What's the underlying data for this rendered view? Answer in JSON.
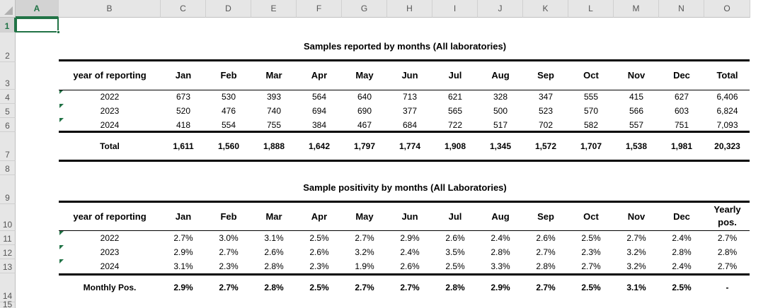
{
  "sheet": {
    "columns": [
      "A",
      "B",
      "C",
      "D",
      "E",
      "F",
      "G",
      "H",
      "I",
      "J",
      "K",
      "L",
      "M",
      "N",
      "O"
    ],
    "rows": [
      "1",
      "2",
      "3",
      "4",
      "5",
      "6",
      "7",
      "8",
      "9",
      "10",
      "11",
      "12",
      "13",
      "14",
      "15"
    ]
  },
  "table1": {
    "title": "Samples reported by months (All laboratories)",
    "headers": [
      "year of reporting",
      "Jan",
      "Feb",
      "Mar",
      "Apr",
      "May",
      "Jun",
      "Jul",
      "Aug",
      "Sep",
      "Oct",
      "Nov",
      "Dec",
      "Total"
    ],
    "rows": [
      [
        "2022",
        "673",
        "530",
        "393",
        "564",
        "640",
        "713",
        "621",
        "328",
        "347",
        "555",
        "415",
        "627",
        "6,406"
      ],
      [
        "2023",
        "520",
        "476",
        "740",
        "694",
        "690",
        "377",
        "565",
        "500",
        "523",
        "570",
        "566",
        "603",
        "6,824"
      ],
      [
        "2024",
        "418",
        "554",
        "755",
        "384",
        "467",
        "684",
        "722",
        "517",
        "702",
        "582",
        "557",
        "751",
        "7,093"
      ]
    ],
    "total": [
      "Total",
      "1,611",
      "1,560",
      "1,888",
      "1,642",
      "1,797",
      "1,774",
      "1,908",
      "1,345",
      "1,572",
      "1,707",
      "1,538",
      "1,981",
      "20,323"
    ]
  },
  "table2": {
    "title": "Sample positivity by months (All Laboratories)",
    "headers": [
      "year of reporting",
      "Jan",
      "Feb",
      "Mar",
      "Apr",
      "May",
      "Jun",
      "Jul",
      "Aug",
      "Sep",
      "Oct",
      "Nov",
      "Dec"
    ],
    "last_header_line1": "Yearly",
    "last_header_line2": "pos.",
    "rows": [
      [
        "2022",
        "2.7%",
        "3.0%",
        "3.1%",
        "2.5%",
        "2.7%",
        "2.9%",
        "2.6%",
        "2.4%",
        "2.6%",
        "2.5%",
        "2.7%",
        "2.4%",
        "2.7%"
      ],
      [
        "2023",
        "2.9%",
        "2.7%",
        "2.6%",
        "2.6%",
        "3.2%",
        "2.4%",
        "3.5%",
        "2.8%",
        "2.7%",
        "2.3%",
        "3.2%",
        "2.8%",
        "2.8%"
      ],
      [
        "2024",
        "3.1%",
        "2.3%",
        "2.8%",
        "2.3%",
        "1.9%",
        "2.6%",
        "2.5%",
        "3.3%",
        "2.8%",
        "2.7%",
        "3.2%",
        "2.4%",
        "2.7%"
      ]
    ],
    "total": [
      "Monthly Pos.",
      "2.9%",
      "2.7%",
      "2.8%",
      "2.5%",
      "2.7%",
      "2.7%",
      "2.8%",
      "2.9%",
      "2.7%",
      "2.5%",
      "3.1%",
      "2.5%",
      "-"
    ]
  },
  "colors": {
    "selection": "#217346",
    "header_bg": "#e6e6e6"
  }
}
